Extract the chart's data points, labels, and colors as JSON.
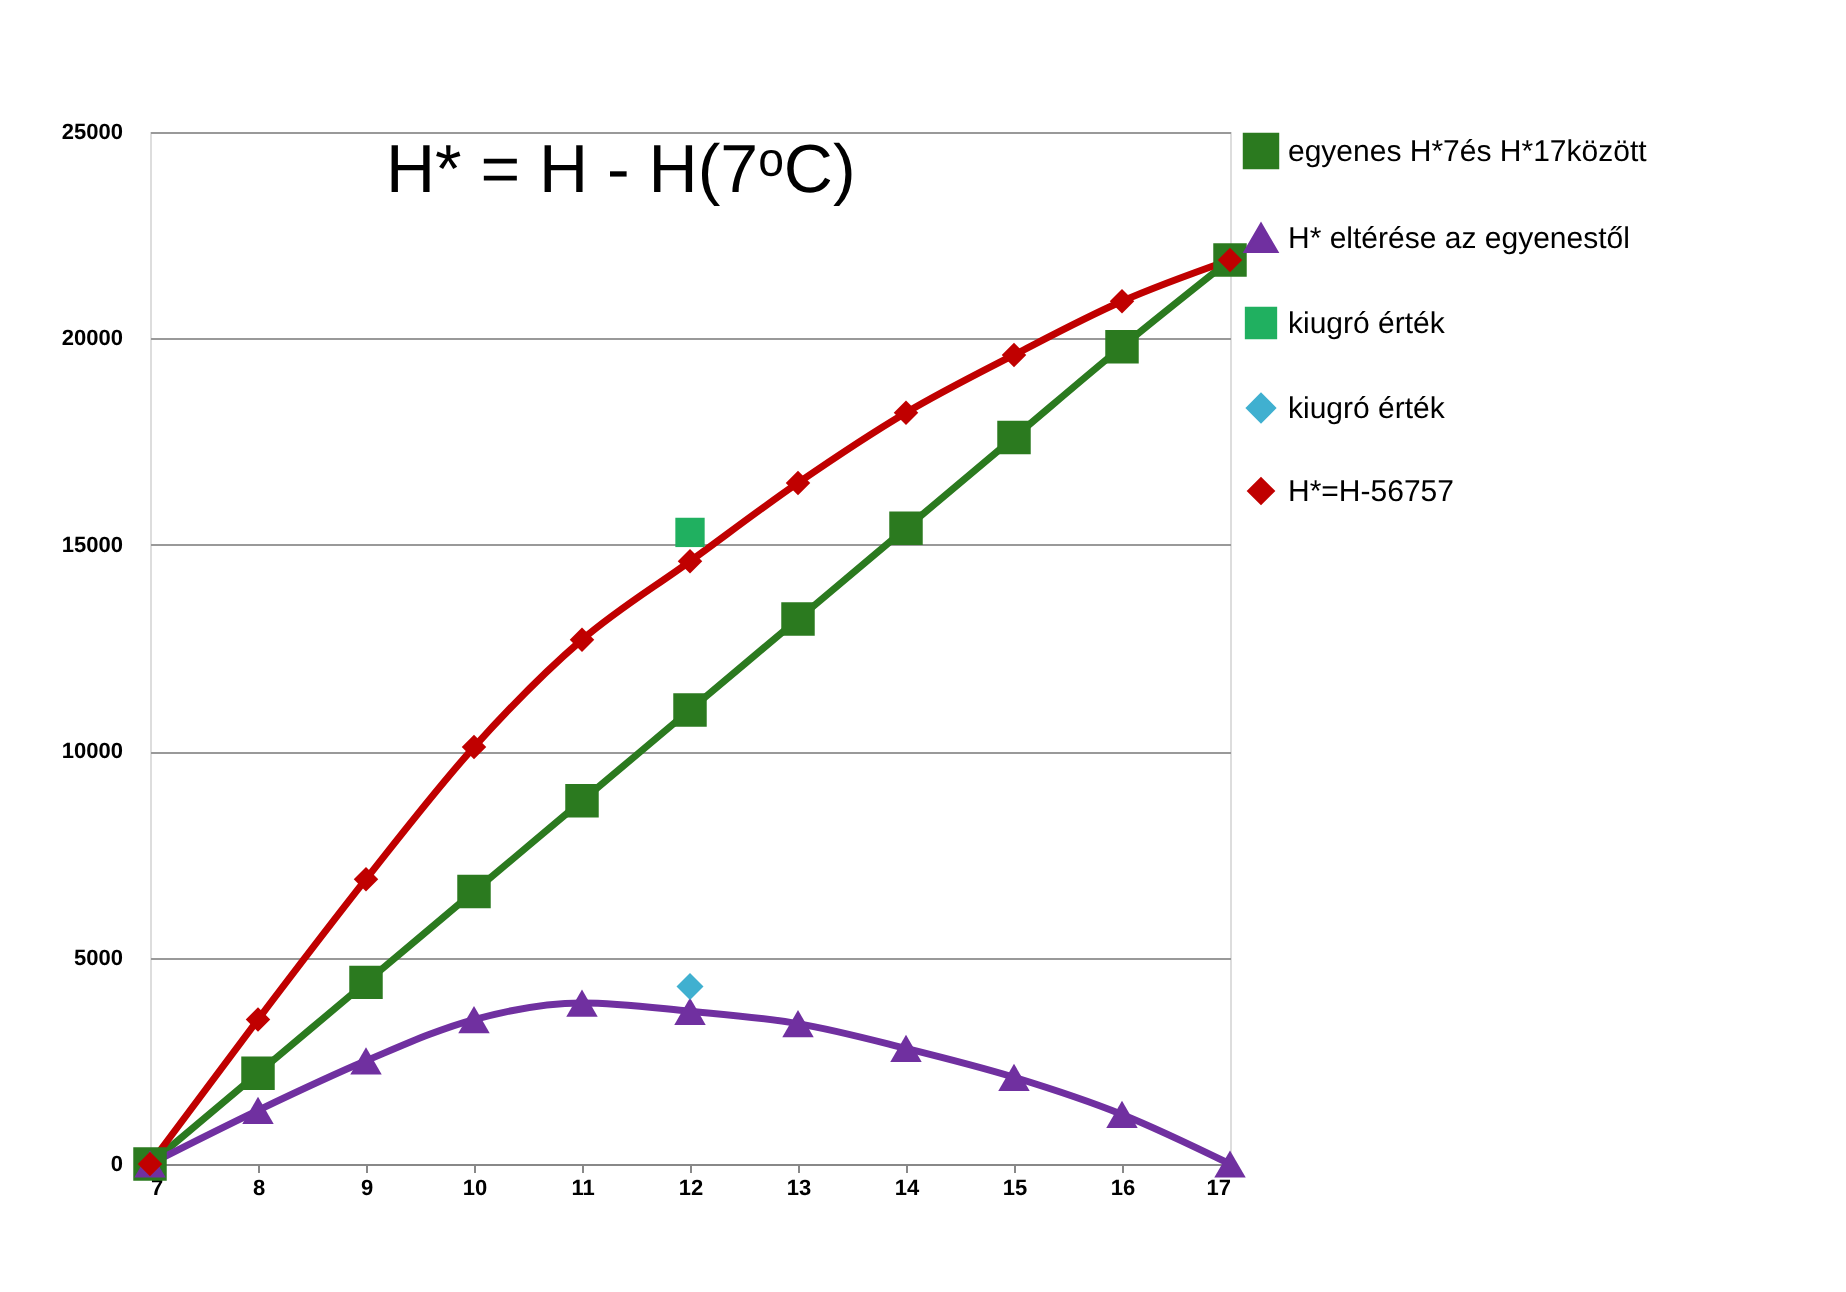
{
  "chart_data": {
    "type": "line",
    "annotations": [
      "H* = H -  H(7ᵒC)"
    ],
    "x": [
      7,
      8,
      9,
      10,
      11,
      12,
      13,
      14,
      15,
      16,
      17
    ],
    "xlim": [
      7,
      17
    ],
    "xticks": [
      7,
      8,
      9,
      10,
      11,
      12,
      13,
      14,
      15,
      16,
      17
    ],
    "ylim": [
      0,
      25000
    ],
    "yticks": [
      0,
      5000,
      10000,
      15000,
      20000,
      25000
    ],
    "grid": "y",
    "legend": "right",
    "line_style": "solid",
    "series": [
      {
        "name": "egyenes H*7és H*17között",
        "marker": "square",
        "color": "#2b7a1f",
        "values": [
          0,
          2200,
          4400,
          6600,
          8800,
          11000,
          13200,
          15400,
          17600,
          19800,
          21900
        ]
      },
      {
        "name": "H* eltérése az egyenestől",
        "marker": "triangle",
        "color": "#7030a0",
        "values": [
          0,
          1300,
          2500,
          3500,
          3900,
          3700,
          3400,
          2800,
          2100,
          1200,
          0
        ]
      },
      {
        "name": "kiugró érték",
        "type": "scatter",
        "marker": "square",
        "color": "#20b060",
        "x": [
          12
        ],
        "values": [
          15300
        ]
      },
      {
        "name": "kiugró érték",
        "type": "scatter",
        "marker": "diamond",
        "color": "#40b0d0",
        "x": [
          12
        ],
        "values": [
          4300
        ]
      },
      {
        "name": "H*=H-56757",
        "marker": "diamond",
        "color": "#c00000",
        "values": [
          0,
          3500,
          6900,
          10100,
          12700,
          14600,
          16500,
          18200,
          19600,
          20900,
          21900
        ]
      }
    ]
  }
}
